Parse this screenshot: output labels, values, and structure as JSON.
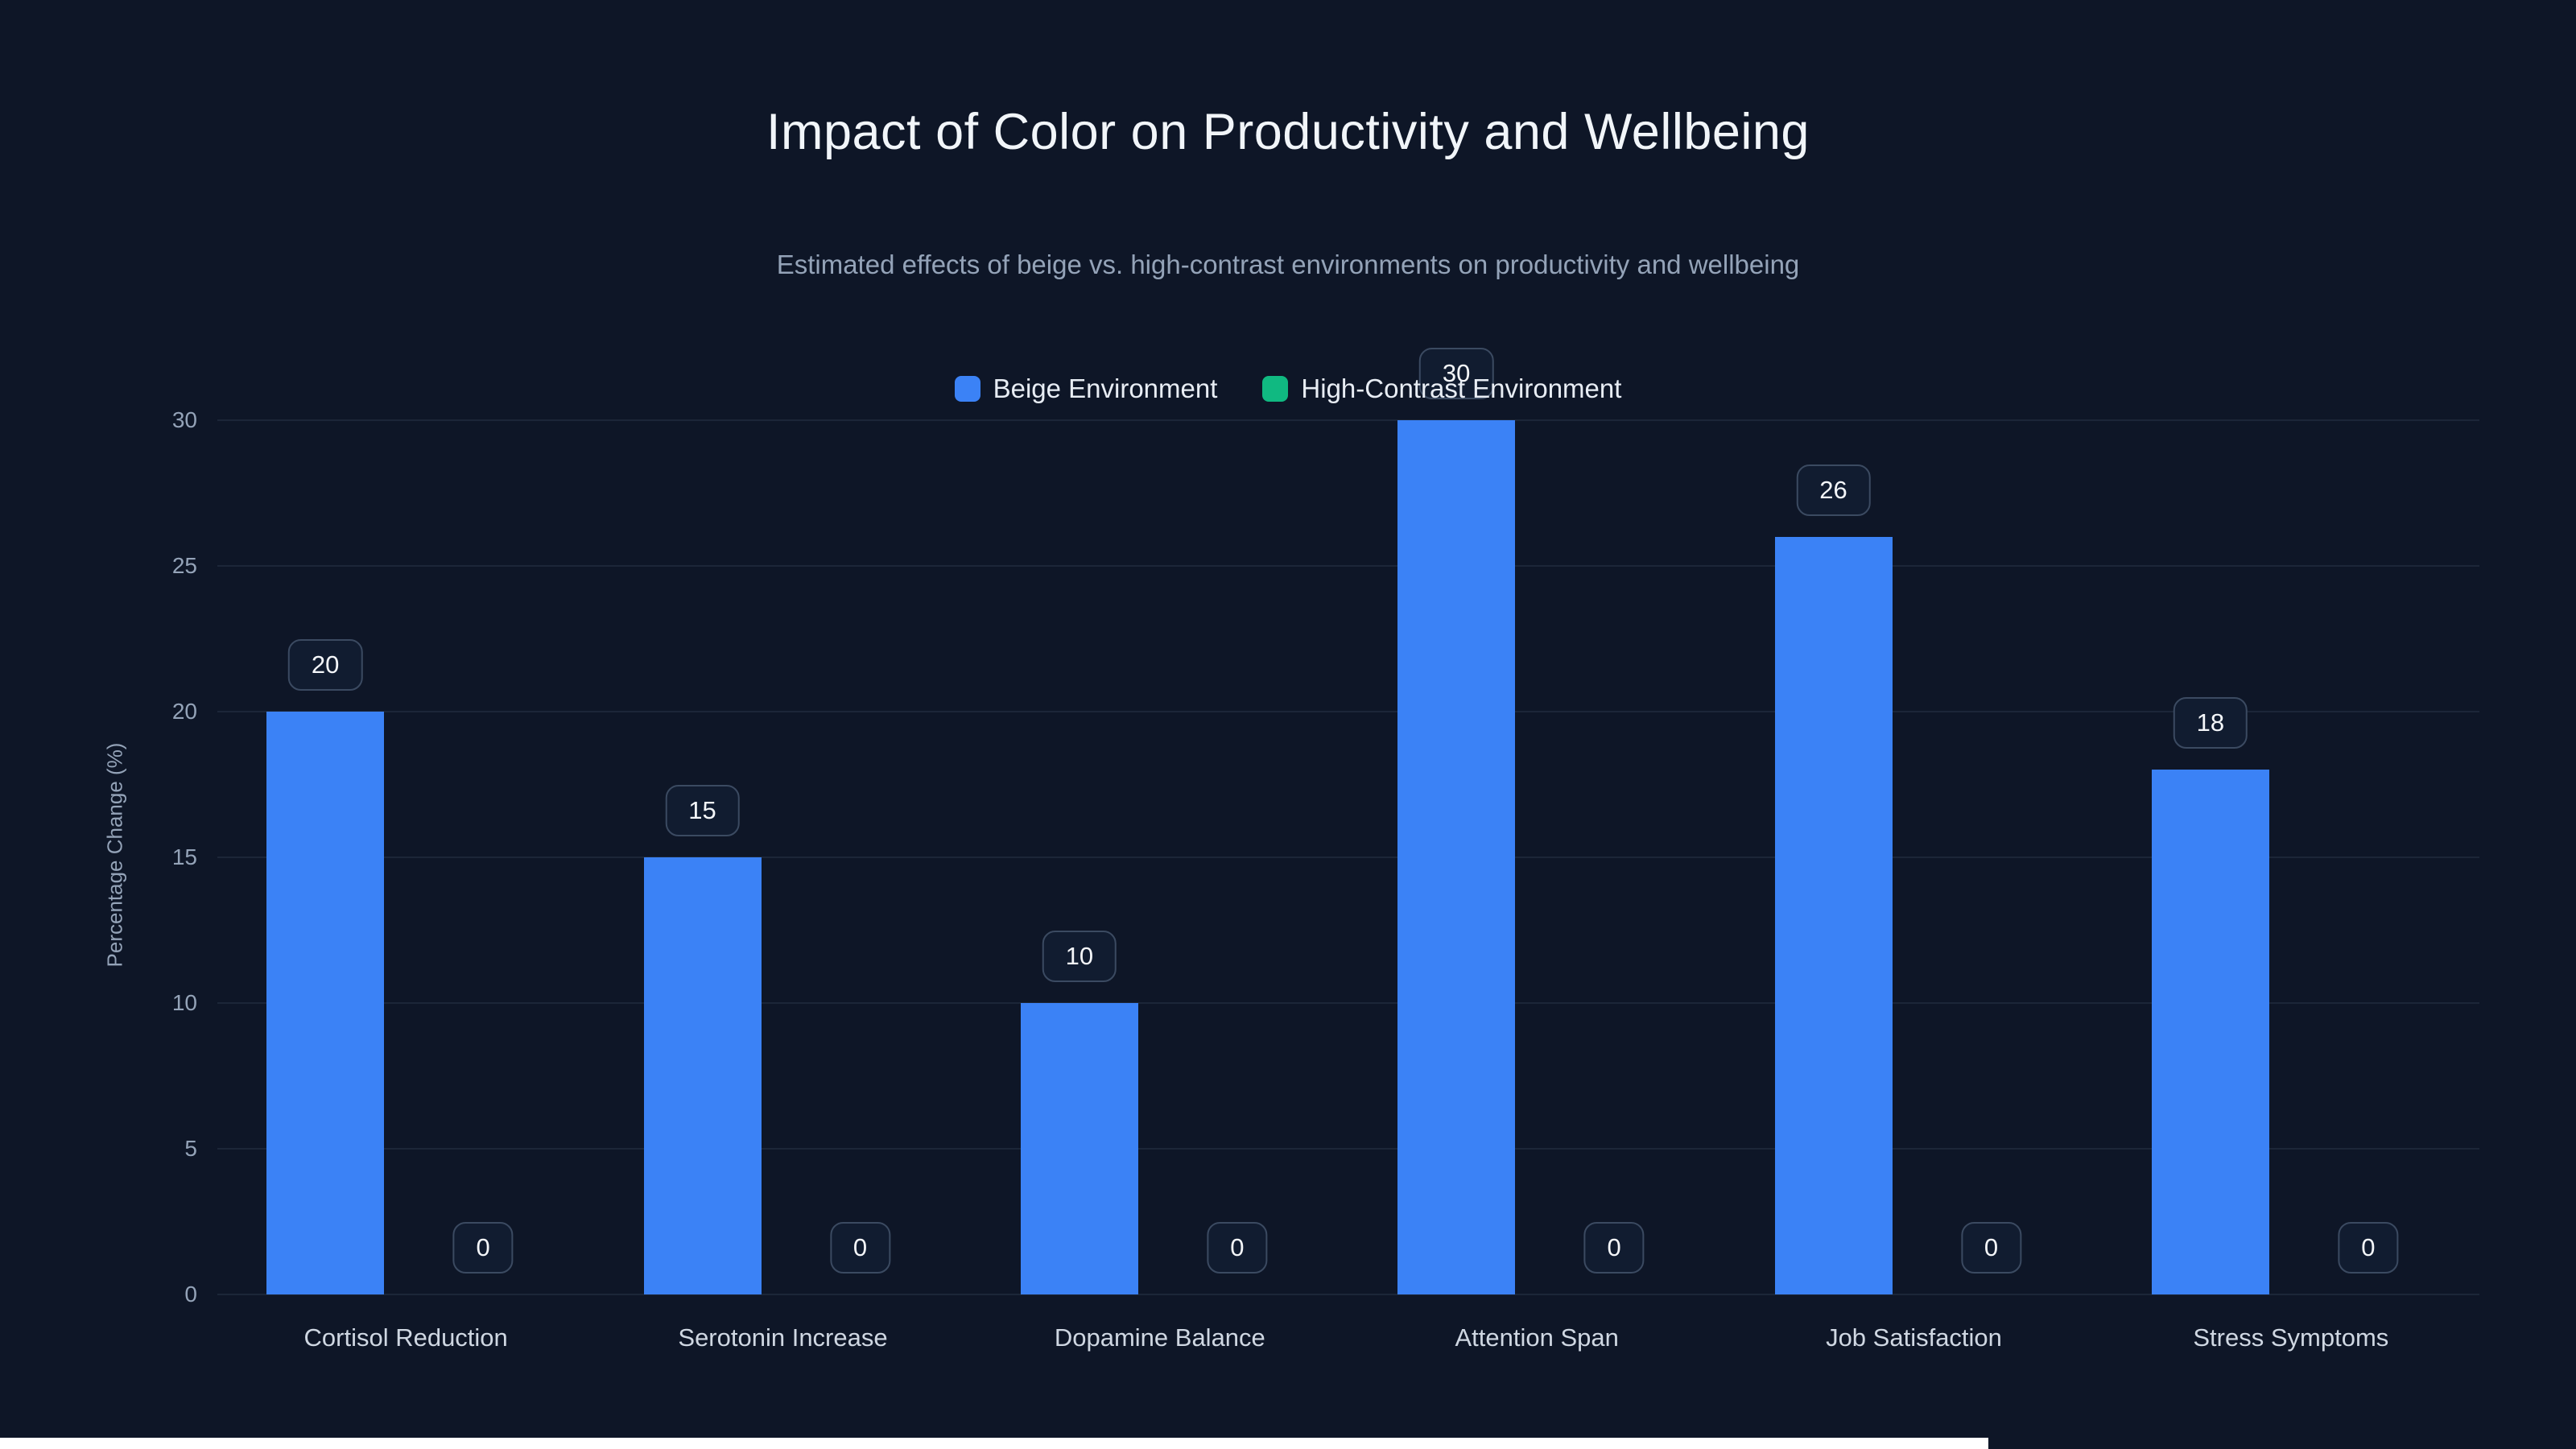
{
  "chart_data": {
    "type": "bar",
    "title": "Impact of Color on Productivity and Wellbeing",
    "subtitle": "Estimated effects of beige vs. high-contrast environments on productivity and wellbeing",
    "ylabel": "Percentage Change (%)",
    "xlabel": "",
    "categories": [
      "Cortisol Reduction",
      "Serotonin Increase",
      "Dopamine Balance",
      "Attention Span",
      "Job Satisfaction",
      "Stress Symptoms"
    ],
    "series": [
      {
        "name": "Beige Environment",
        "color": "#3b82f6",
        "values": [
          20,
          15,
          10,
          30,
          26,
          18
        ]
      },
      {
        "name": "High-Contrast Environment",
        "color": "#10b981",
        "values": [
          0,
          0,
          0,
          0,
          0,
          0
        ]
      }
    ],
    "ylim": [
      0,
      30
    ],
    "yticks": [
      0,
      5,
      10,
      15,
      20,
      25,
      30
    ],
    "grid": true,
    "legend_position": "top",
    "data_labels": true
  },
  "colors": {
    "background": "#0e1627",
    "gridline": "#1c2638",
    "badge_border": "#3b4a61",
    "badge_background": "#111c30",
    "title_text": "#f1f5f9",
    "muted_text": "#94a3b8"
  }
}
